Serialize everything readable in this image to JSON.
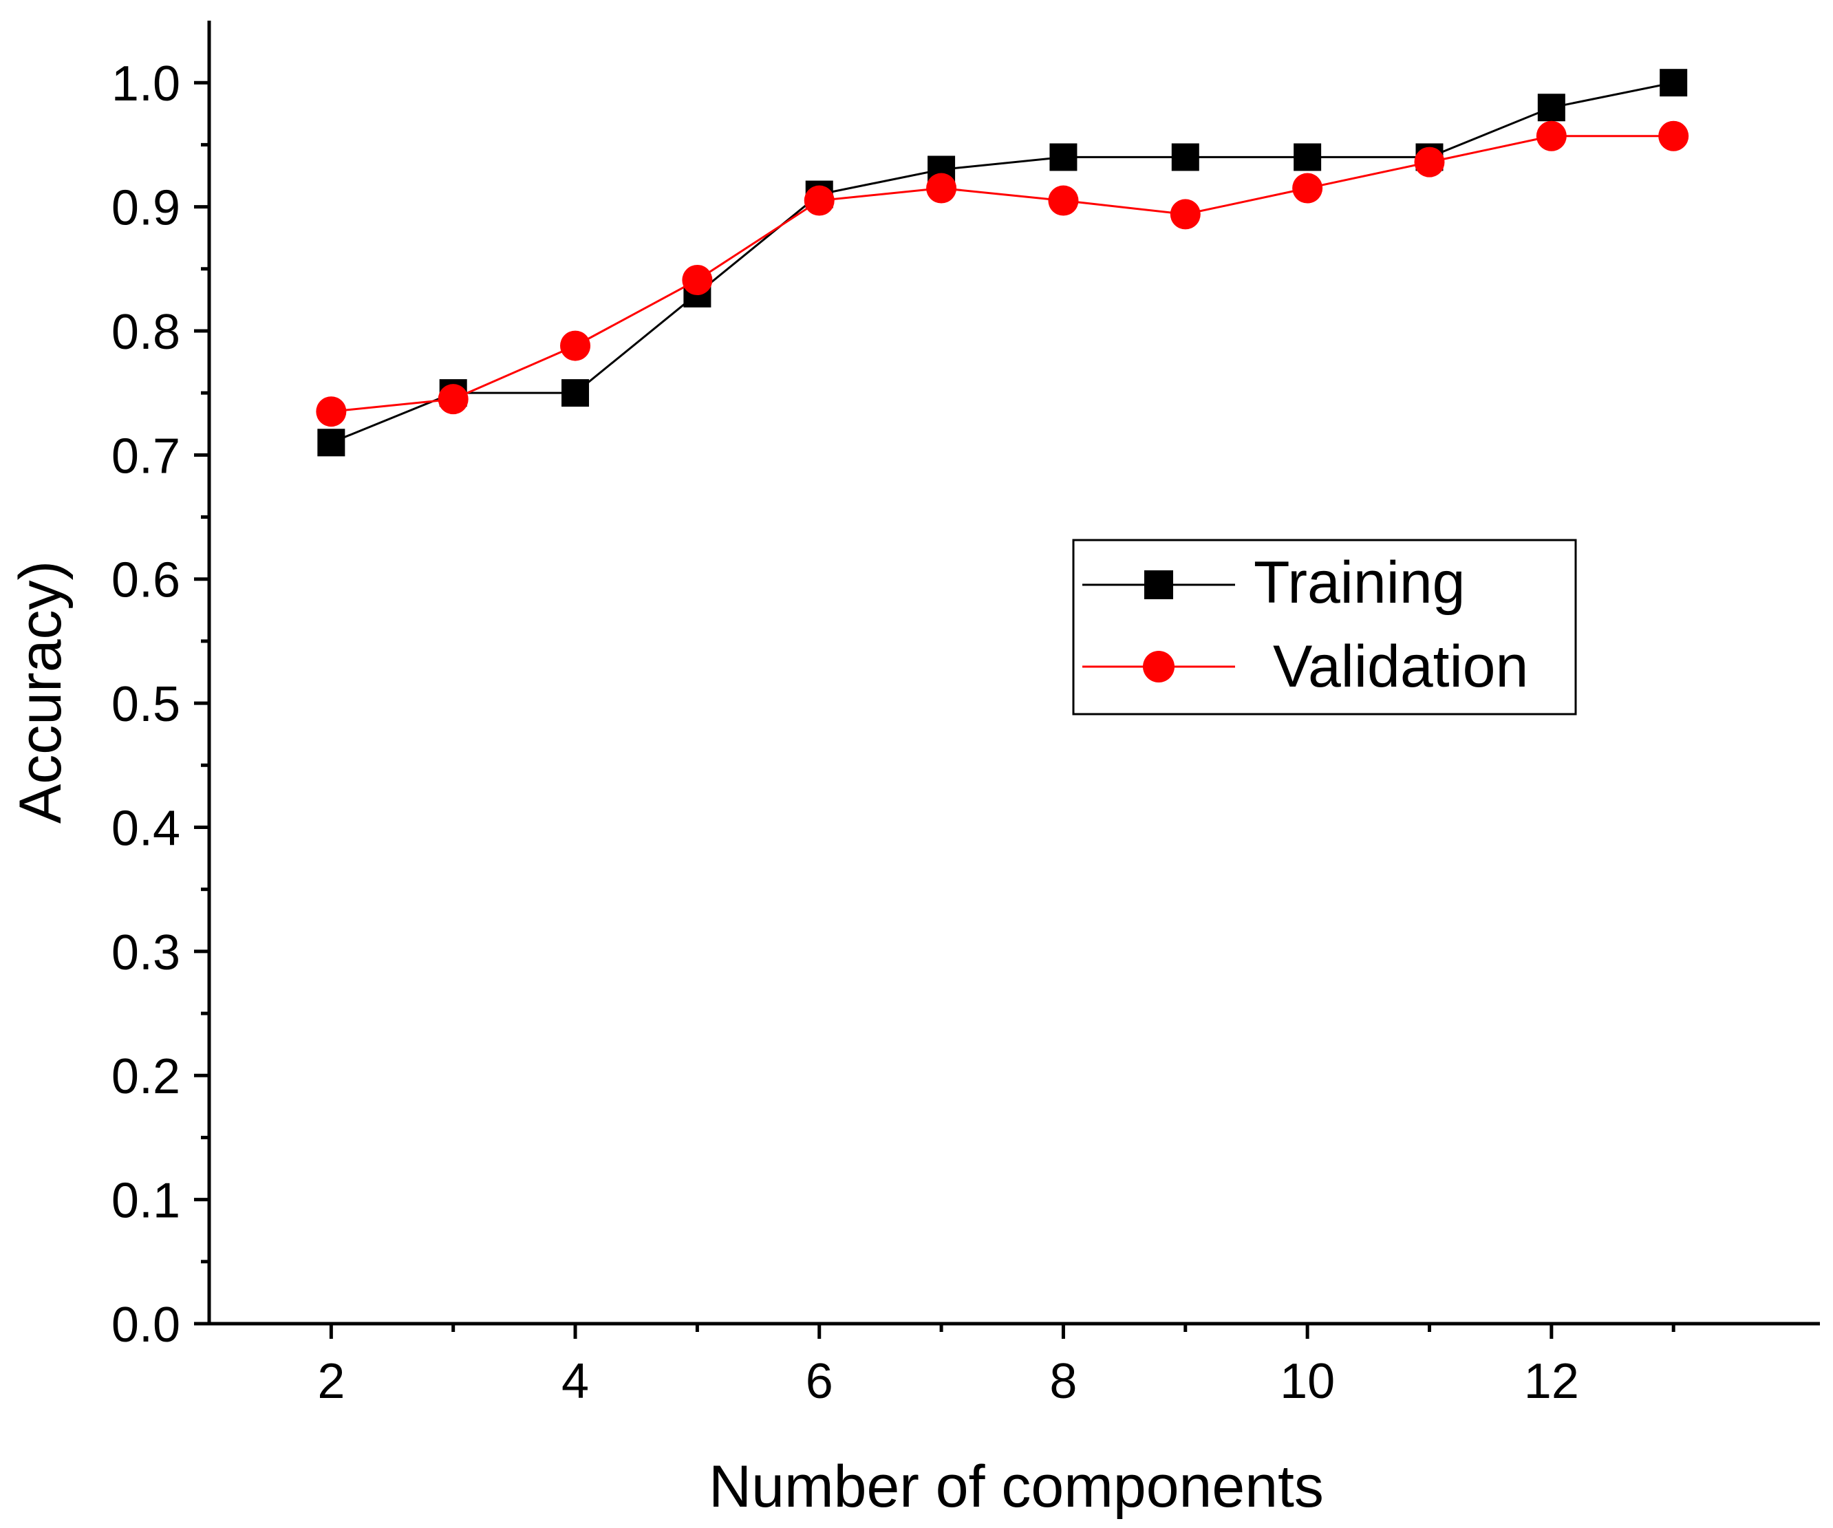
{
  "chart_data": {
    "type": "line",
    "title": "",
    "xlabel": "Number of components",
    "ylabel": "Accuracy)",
    "xlim": [
      1,
      14.2
    ],
    "ylim": [
      0,
      1.05
    ],
    "x_ticks": [
      2,
      4,
      6,
      8,
      10,
      12
    ],
    "x_minor_ticks": [
      3,
      5,
      7,
      9,
      11,
      13
    ],
    "y_ticks": [
      0.0,
      0.1,
      0.2,
      0.3,
      0.4,
      0.5,
      0.6,
      0.7,
      0.8,
      0.9,
      1.0
    ],
    "x_tick_labels": [
      "2",
      "4",
      "6",
      "8",
      "10",
      "12"
    ],
    "y_tick_labels": [
      "0.0",
      "0.1",
      "0.2",
      "0.3",
      "0.4",
      "0.5",
      "0.6",
      "0.7",
      "0.8",
      "0.9",
      "1.0"
    ],
    "x": [
      2,
      3,
      4,
      5,
      6,
      7,
      8,
      9,
      10,
      11,
      12,
      13
    ],
    "series": [
      {
        "name": "Training",
        "marker": "square",
        "color": "#000000",
        "values": [
          0.71,
          0.75,
          0.75,
          0.83,
          0.91,
          0.93,
          0.94,
          0.94,
          0.94,
          0.94,
          0.98,
          1.0
        ]
      },
      {
        "name": "Validation",
        "marker": "circle",
        "color": "#ff0000",
        "values": [
          0.735,
          0.745,
          0.788,
          0.841,
          0.905,
          0.915,
          0.905,
          0.894,
          0.915,
          0.936,
          0.957,
          0.957
        ]
      }
    ],
    "grid": false,
    "legend": {
      "position": "center-right",
      "entries": [
        "Training",
        "Validation"
      ]
    }
  }
}
